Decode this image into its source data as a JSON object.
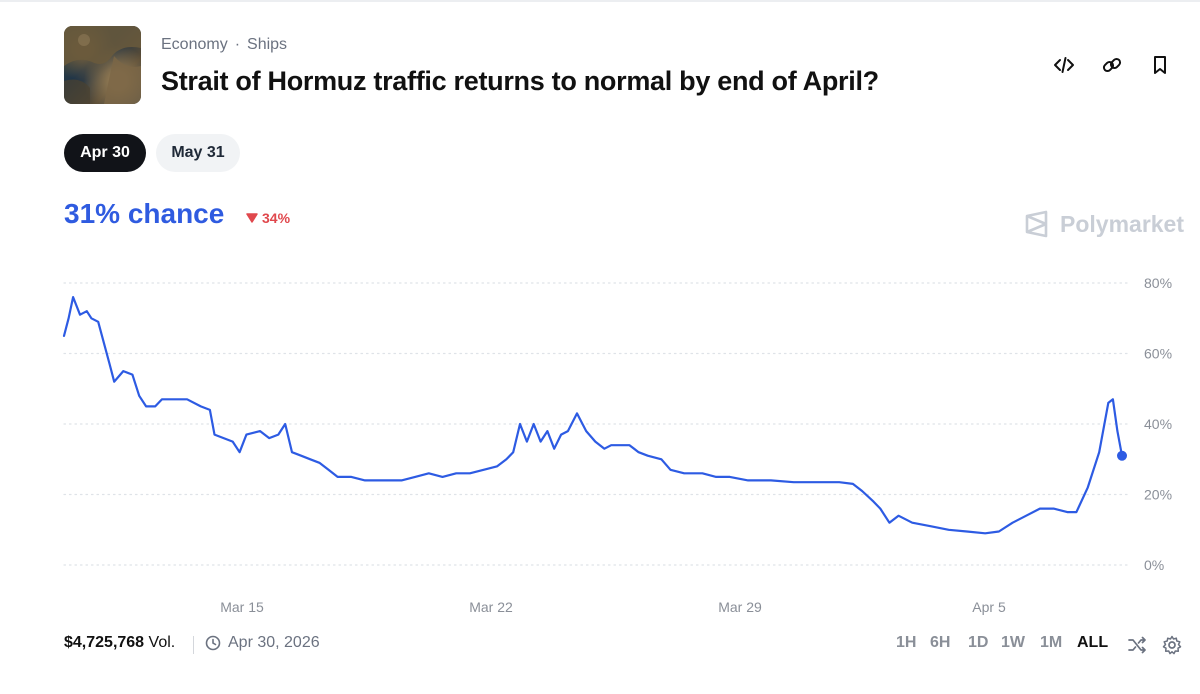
{
  "header": {
    "category": "Economy",
    "subcategory": "Ships",
    "title": "Strait of Hormuz traffic returns to normal by end of April?"
  },
  "icons": {
    "embed": "code-icon",
    "link": "link-icon",
    "bookmark": "bookmark-icon"
  },
  "date_pills": [
    {
      "label": "Apr 30",
      "active": true
    },
    {
      "label": "May 31",
      "active": false
    }
  ],
  "summary": {
    "chance_text": "31% chance",
    "change_text": "34%",
    "change_direction": "down",
    "brand": "Polymarket"
  },
  "colors": {
    "accent": "#2f5be0",
    "negative": "#e0484d",
    "line": "#2d5be3"
  },
  "chart_data": {
    "type": "line",
    "x_ticks": [
      "Mar 15",
      "Mar 22",
      "Mar 29",
      "Apr 5"
    ],
    "y_ticks": [
      "80%",
      "60%",
      "40%",
      "20%",
      "0%"
    ],
    "ylim": [
      0,
      80
    ],
    "grid": true,
    "series": [
      {
        "values": [
          [
            10.0,
            65
          ],
          [
            10.1,
            70
          ],
          [
            10.2,
            76
          ],
          [
            10.35,
            71
          ],
          [
            10.5,
            72
          ],
          [
            10.6,
            70
          ],
          [
            10.75,
            69
          ],
          [
            11.0,
            57
          ],
          [
            11.1,
            52
          ],
          [
            11.3,
            55
          ],
          [
            11.5,
            54
          ],
          [
            11.65,
            48
          ],
          [
            11.8,
            45
          ],
          [
            12.0,
            45
          ],
          [
            12.15,
            47
          ],
          [
            12.4,
            47
          ],
          [
            12.7,
            47
          ],
          [
            13.0,
            45
          ],
          [
            13.2,
            44
          ],
          [
            13.3,
            37
          ],
          [
            13.5,
            36
          ],
          [
            13.7,
            35
          ],
          [
            13.85,
            32
          ],
          [
            14.0,
            37
          ],
          [
            14.3,
            38
          ],
          [
            14.5,
            36
          ],
          [
            14.7,
            37
          ],
          [
            14.85,
            40
          ],
          [
            15.0,
            32
          ],
          [
            15.2,
            31
          ],
          [
            15.4,
            30
          ],
          [
            15.6,
            29
          ],
          [
            15.8,
            27
          ],
          [
            16.0,
            25
          ],
          [
            16.3,
            25
          ],
          [
            16.6,
            24
          ],
          [
            16.9,
            24
          ],
          [
            17.1,
            24
          ],
          [
            17.4,
            24
          ],
          [
            17.7,
            25
          ],
          [
            18.0,
            26
          ],
          [
            18.3,
            25
          ],
          [
            18.6,
            26
          ],
          [
            18.9,
            26
          ],
          [
            19.2,
            27
          ],
          [
            19.5,
            28
          ],
          [
            19.7,
            30
          ],
          [
            19.85,
            32
          ],
          [
            20.0,
            40
          ],
          [
            20.15,
            35
          ],
          [
            20.3,
            40
          ],
          [
            20.45,
            35
          ],
          [
            20.6,
            38
          ],
          [
            20.75,
            33
          ],
          [
            20.9,
            37
          ],
          [
            21.05,
            38
          ],
          [
            21.25,
            43
          ],
          [
            21.45,
            38
          ],
          [
            21.65,
            35
          ],
          [
            21.85,
            33
          ],
          [
            22.0,
            34
          ],
          [
            22.4,
            34
          ],
          [
            22.6,
            32
          ],
          [
            22.8,
            31
          ],
          [
            23.1,
            30
          ],
          [
            23.3,
            27
          ],
          [
            23.6,
            26
          ],
          [
            24.0,
            26
          ],
          [
            24.3,
            25
          ],
          [
            24.6,
            25
          ],
          [
            25.0,
            24
          ],
          [
            25.5,
            24
          ],
          [
            26.0,
            23.5
          ],
          [
            26.5,
            23.5
          ],
          [
            27.0,
            23.5
          ],
          [
            27.3,
            23
          ],
          [
            27.5,
            21
          ],
          [
            27.75,
            18
          ],
          [
            27.9,
            16
          ],
          [
            28.1,
            12
          ],
          [
            28.3,
            14
          ],
          [
            28.6,
            12
          ],
          [
            29.0,
            11
          ],
          [
            29.4,
            10
          ],
          [
            29.8,
            9.5
          ],
          [
            30.2,
            9
          ],
          [
            30.5,
            9.5
          ],
          [
            30.8,
            12
          ],
          [
            31.1,
            14
          ],
          [
            31.4,
            16
          ],
          [
            31.7,
            16
          ],
          [
            32.0,
            15
          ],
          [
            32.2,
            15
          ],
          [
            32.45,
            22
          ],
          [
            32.7,
            32
          ],
          [
            32.9,
            46
          ],
          [
            33.0,
            47
          ],
          [
            33.1,
            38
          ],
          [
            33.2,
            31
          ]
        ]
      }
    ]
  },
  "footer": {
    "volume_value": "$4,725,768",
    "volume_label": "Vol.",
    "end_date": "Apr 30, 2026",
    "ranges": [
      "1H",
      "6H",
      "1D",
      "1W",
      "1M",
      "ALL"
    ],
    "active_range": "ALL"
  }
}
